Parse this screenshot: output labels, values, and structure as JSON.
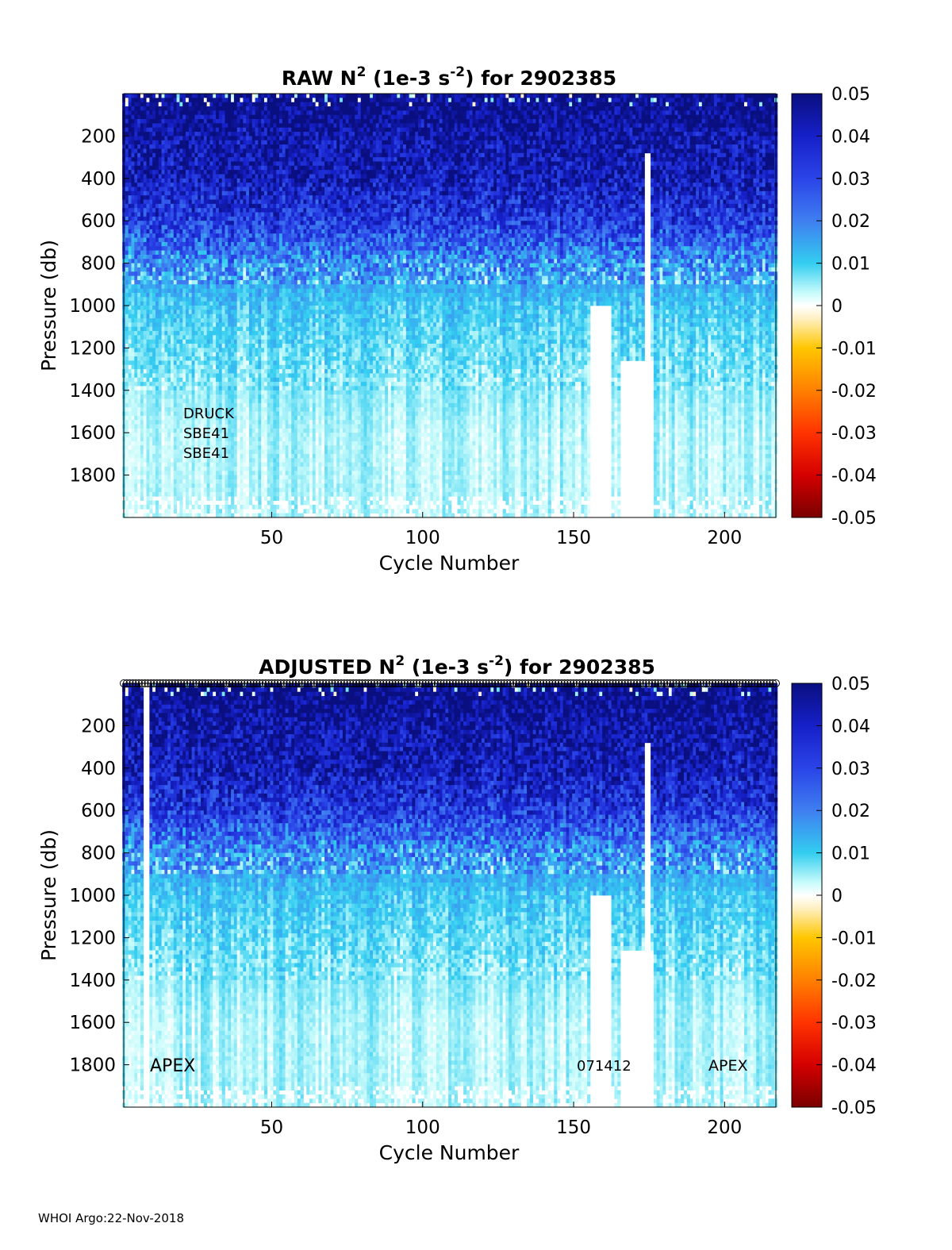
{
  "footer": "WHOI Argo:22-Nov-2018",
  "colorbar": {
    "ticks": [
      "0.05",
      "0.04",
      "0.03",
      "0.02",
      "0.01",
      "0",
      "-0.01",
      "-0.02",
      "-0.03",
      "-0.04",
      "-0.05"
    ],
    "range": [
      -0.05,
      0.05
    ]
  },
  "chart_data": [
    {
      "type": "heatmap",
      "title_parts": [
        "RAW N",
        "2",
        " (1e-3 s",
        "-2",
        ") for 2902385"
      ],
      "xlabel": "Cycle Number",
      "ylabel": "Pressure (db)",
      "xticks": [
        "50",
        "100",
        "150",
        "200"
      ],
      "yticks": [
        "200",
        "400",
        "600",
        "800",
        "1000",
        "1200",
        "1400",
        "1600",
        "1800"
      ],
      "xlim": [
        1,
        217
      ],
      "ylim": [
        0,
        2000
      ],
      "y_reversed": true,
      "colorbar_range": [
        -0.05,
        0.05
      ],
      "annotations": [
        "DRUCK",
        "SBE41",
        "SBE41"
      ],
      "depth_profile": [
        {
          "pressure": 50,
          "value": 0.05
        },
        {
          "pressure": 200,
          "value": 0.045
        },
        {
          "pressure": 400,
          "value": 0.042
        },
        {
          "pressure": 600,
          "value": 0.033
        },
        {
          "pressure": 800,
          "value": 0.018
        },
        {
          "pressure": 1000,
          "value": 0.011
        },
        {
          "pressure": 1200,
          "value": 0.008
        },
        {
          "pressure": 1400,
          "value": 0.006
        },
        {
          "pressure": 1600,
          "value": 0.004
        },
        {
          "pressure": 1800,
          "value": 0.004
        },
        {
          "pressure": 1950,
          "value": 0.004
        }
      ],
      "missing_data": [
        {
          "cycles": [
            156,
            162
          ],
          "from_pressure": 1000
        },
        {
          "cycles": [
            166,
            176
          ],
          "from_pressure": 1250
        },
        {
          "cycles": [
            174,
            175
          ],
          "from_pressure": 280
        }
      ]
    },
    {
      "type": "heatmap",
      "title_parts": [
        "ADJUSTED N",
        "2",
        " (1e-3 s",
        "-2",
        ") for 2902385"
      ],
      "xlabel": "Cycle Number",
      "ylabel": "Pressure (db)",
      "xticks": [
        "50",
        "100",
        "150",
        "200"
      ],
      "yticks": [
        "200",
        "400",
        "600",
        "800",
        "1000",
        "1200",
        "1400",
        "1600",
        "1800"
      ],
      "xlim": [
        1,
        217
      ],
      "ylim": [
        0,
        2000
      ],
      "y_reversed": true,
      "colorbar_range": [
        -0.05,
        0.05
      ],
      "annotations": [
        "APEX",
        "071412",
        "APEX"
      ],
      "markers": "open circles along the top axis for each cycle",
      "depth_profile": [
        {
          "pressure": 50,
          "value": 0.05
        },
        {
          "pressure": 200,
          "value": 0.045
        },
        {
          "pressure": 400,
          "value": 0.042
        },
        {
          "pressure": 600,
          "value": 0.033
        },
        {
          "pressure": 800,
          "value": 0.018
        },
        {
          "pressure": 1000,
          "value": 0.011
        },
        {
          "pressure": 1200,
          "value": 0.008
        },
        {
          "pressure": 1400,
          "value": 0.006
        },
        {
          "pressure": 1600,
          "value": 0.004
        },
        {
          "pressure": 1800,
          "value": 0.004
        },
        {
          "pressure": 1950,
          "value": 0.004
        }
      ],
      "missing_data": [
        {
          "cycles": [
            8,
            9
          ],
          "from_pressure": 0
        },
        {
          "cycles": [
            156,
            162
          ],
          "from_pressure": 1000
        },
        {
          "cycles": [
            166,
            176
          ],
          "from_pressure": 1250
        },
        {
          "cycles": [
            174,
            175
          ],
          "from_pressure": 280
        }
      ]
    }
  ]
}
